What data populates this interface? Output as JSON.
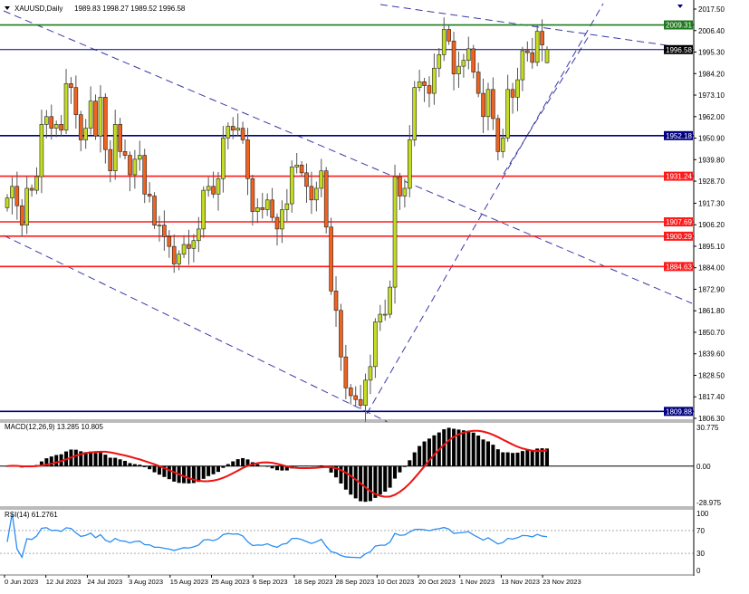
{
  "header": {
    "symbol": "XAUUSD,Daily",
    "ohlc": "1989.83 1998.27 1989.52 1996.58",
    "collapse_icon": "triangle-down-icon"
  },
  "colors": {
    "bull": "#c4dc22",
    "bear": "#f0621e",
    "resistance_green": "#1f7a1f",
    "level_red": "#ff1a1a",
    "level_navy": "#000080",
    "trendline": "#3a3aa8",
    "macd_hist": "#000000",
    "macd_signal": "#ee1111",
    "rsi": "#2a8ef0"
  },
  "price_axis": {
    "labels": [
      "2017.50",
      "2006.40",
      "1995.30",
      "1984.20",
      "1973.10",
      "1962.00",
      "1950.90",
      "1939.80",
      "1928.70",
      "1917.30",
      "1906.20",
      "1895.10",
      "1884.00",
      "1872.90",
      "1861.80",
      "1850.70",
      "1839.60",
      "1828.50",
      "1817.40",
      "1806.30"
    ],
    "range": [
      1806.3,
      2017.5
    ]
  },
  "levels": [
    {
      "value": 2009.31,
      "label": "2009.31",
      "color": "#1f7a1f",
      "style": "solid"
    },
    {
      "value": 1996.58,
      "label": "1996.58",
      "color": "#000080",
      "style": "bid",
      "tag_color": "#000000"
    },
    {
      "value": 1952.18,
      "label": "1952.18",
      "color": "#000080",
      "style": "solid"
    },
    {
      "value": 1931.24,
      "label": "1931.24",
      "color": "#ff1a1a",
      "style": "solid"
    },
    {
      "value": 1907.69,
      "label": "1907.69",
      "color": "#ff1a1a",
      "style": "solid"
    },
    {
      "value": 1900.29,
      "label": "1900.29",
      "color": "#ff1a1a",
      "style": "solid"
    },
    {
      "value": 1884.63,
      "label": "1884.63",
      "color": "#ff1a1a",
      "style": "solid"
    },
    {
      "value": 1809.88,
      "label": "1809.88",
      "color": "#000080",
      "style": "solid"
    }
  ],
  "chart_data": {
    "type": "candlestick",
    "title": "XAUUSD,Daily",
    "first_open": 1915,
    "closes": [
      1920,
      1926,
      1916,
      1906,
      1925,
      1924,
      1931,
      1958,
      1962,
      1956,
      1958,
      1955,
      1979,
      1977,
      1963,
      1950,
      1956,
      1970,
      1952,
      1972,
      1945,
      1934,
      1958,
      1944,
      1942,
      1932,
      1940,
      1942,
      1922,
      1921,
      1906,
      1906,
      1900,
      1895,
      1886,
      1891,
      1896,
      1894,
      1898,
      1904,
      1924,
      1926,
      1922,
      1930,
      1951,
      1957,
      1955,
      1956,
      1950,
      1930,
      1913,
      1915,
      1914,
      1919,
      1910,
      1904,
      1914,
      1917,
      1936,
      1937,
      1933,
      1926,
      1919,
      1925,
      1934,
      1905,
      1872,
      1862,
      1838,
      1822,
      1818,
      1816,
      1813,
      1826,
      1833,
      1856,
      1860,
      1860,
      1874,
      1931,
      1921,
      1925,
      1950,
      1977,
      1980,
      1978,
      1974,
      1987,
      1994,
      2007,
      2001,
      1984,
      1988,
      1991,
      1997,
      1985,
      1974,
      1962,
      1976,
      1961,
      1944,
      1951,
      1976,
      1972,
      1981,
      1996,
      1995,
      1990,
      2006,
      1999,
      1996.58
    ],
    "last_candle": {
      "open": 1989.83,
      "high": 1998.27,
      "low": 1989.52,
      "close": 1996.58
    },
    "x_tick_labels": [
      "0 Jun 2023",
      "12 Jul 2023",
      "24 Jul 2023",
      "3 Aug 2023",
      "15 Aug 2023",
      "25 Aug 2023",
      "6 Sep 2023",
      "18 Sep 2023",
      "28 Sep 2023",
      "10 Oct 2023",
      "20 Oct 2023",
      "1 Nov 2023",
      "13 Nov 2023",
      "23 Nov 2023"
    ],
    "trendlines": "dashed channel lines (descending upper, descending channel, rising support)"
  },
  "macd": {
    "label": "MACD(12,26,9) 13.285 10.805",
    "params": [
      12,
      26,
      9
    ],
    "axis_labels": [
      "30.775",
      "0.00",
      "-28.975"
    ],
    "range": [
      -28.975,
      30.775
    ]
  },
  "rsi": {
    "label": "RSI(14) 61.2761",
    "period": 14,
    "axis_labels": [
      "100",
      "70",
      "30",
      "0"
    ]
  }
}
